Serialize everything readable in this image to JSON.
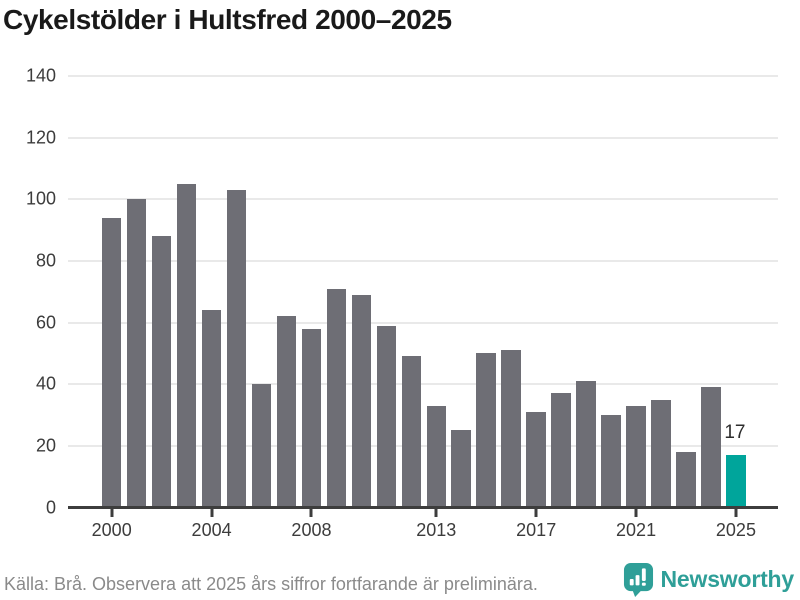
{
  "title": "Cykelstölder i Hultsfred 2000–2025",
  "source_note": "Källa: Brå. Observera att 2025 års siffror fortfarande är preliminära.",
  "branding": {
    "logo_text": "Newsworthy",
    "logo_color": "#2f9f98"
  },
  "chart_data": {
    "type": "bar",
    "title": "Cykelstölder i Hultsfred 2000–2025",
    "categories": [
      2000,
      2001,
      2002,
      2003,
      2004,
      2005,
      2006,
      2007,
      2008,
      2009,
      2010,
      2011,
      2012,
      2013,
      2014,
      2015,
      2016,
      2017,
      2018,
      2019,
      2020,
      2021,
      2022,
      2023,
      2024,
      2025
    ],
    "values": [
      94,
      100,
      88,
      105,
      64,
      103,
      40,
      62,
      58,
      71,
      69,
      59,
      49,
      33,
      25,
      50,
      51,
      31,
      37,
      41,
      30,
      33,
      35,
      18,
      39,
      17
    ],
    "xlabel": "",
    "ylabel": "",
    "ylim": [
      0,
      140
    ],
    "yticks": [
      0,
      20,
      40,
      60,
      80,
      100,
      120,
      140
    ],
    "xticks": [
      2000,
      2004,
      2008,
      2013,
      2017,
      2021,
      2025
    ],
    "grid": true,
    "legend": "none",
    "bar_color": "#6e6e75",
    "highlight_index": 25,
    "highlight_color": "#00a59b",
    "highlight_value_label": "17",
    "axis_color": "#3d3d3d",
    "gridline_color": "#e9e9e9"
  }
}
